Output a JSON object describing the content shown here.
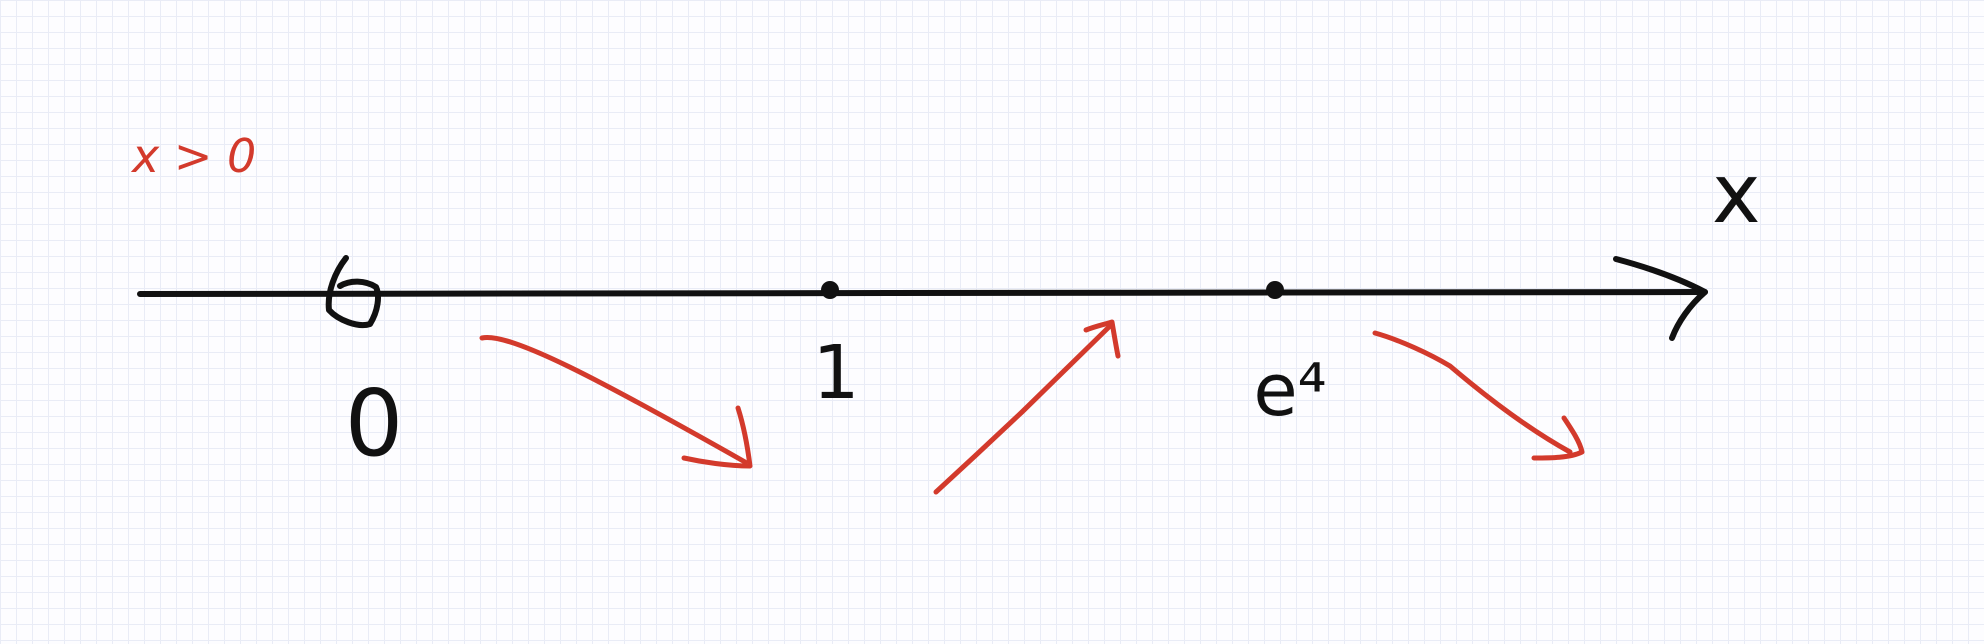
{
  "condition": "x > 0",
  "axis": {
    "variable": "x",
    "points": [
      {
        "label": "0",
        "role": "excluded"
      },
      {
        "label": "1",
        "role": "critical"
      },
      {
        "label": "e⁴",
        "role": "critical"
      }
    ]
  },
  "intervals": [
    {
      "from": "0",
      "to": "1",
      "trend": "decreasing"
    },
    {
      "from": "1",
      "to": "e⁴",
      "trend": "increasing"
    },
    {
      "from": "e⁴",
      "to": "+∞",
      "trend": "decreasing"
    }
  ],
  "colors": {
    "ink": "#111111",
    "annotation": "#d33a2c",
    "grid": "#e9ecf6"
  }
}
